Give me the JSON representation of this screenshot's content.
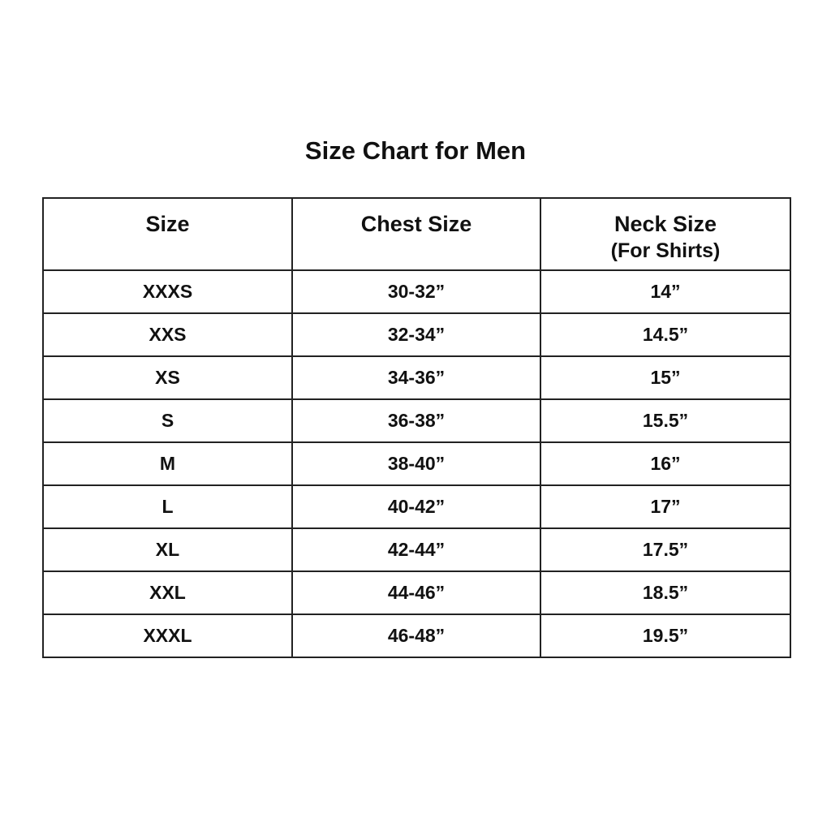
{
  "title": "Size Chart for Men",
  "table": {
    "headers": [
      {
        "label": "Size",
        "sub": ""
      },
      {
        "label": "Chest Size",
        "sub": ""
      },
      {
        "label": "Neck Size",
        "sub": "(For Shirts)"
      }
    ],
    "rows": [
      [
        "XXXS",
        "30-32”",
        "14”"
      ],
      [
        "XXS",
        "32-34”",
        "14.5”"
      ],
      [
        "XS",
        "34-36”",
        "15”"
      ],
      [
        "S",
        "36-38”",
        "15.5”"
      ],
      [
        "M",
        "38-40”",
        "16”"
      ],
      [
        "L",
        "40-42”",
        "17”"
      ],
      [
        "XL",
        "42-44”",
        "17.5”"
      ],
      [
        "XXL",
        "44-46”",
        "18.5”"
      ],
      [
        "XXXL",
        "46-48”",
        "19.5”"
      ]
    ]
  }
}
